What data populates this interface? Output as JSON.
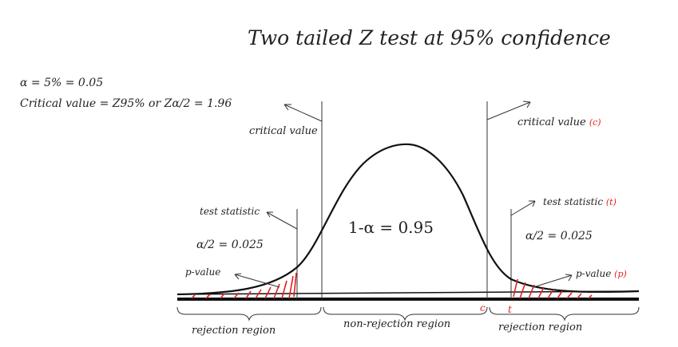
{
  "title": "Two tailed Z test at 95% confidence",
  "alpha_line": "α = 5% = 0.05",
  "critical_value_line": "Critical value = Z95% or Zα/2 = 1.96",
  "labels": {
    "critical_value_left": "critical value",
    "critical_value_right": "critical value",
    "critical_value_right_tag": "(c)",
    "test_statistic_left": "test statistic",
    "test_statistic_right": "test statistic",
    "test_statistic_right_tag": "(t)",
    "alpha_half_left": "α/2 = 0.025",
    "alpha_half_right": "α/2 = 0.025",
    "center_area": "1-α = 0.95",
    "p_value_left": "p-value",
    "p_value_right": "p-value",
    "p_value_right_tag": "(p)",
    "marker_c": "c",
    "marker_t": "t"
  },
  "regions": {
    "left": "rejection region",
    "middle": "non-rejection region",
    "right": "rejection region"
  },
  "colors": {
    "ink": "#111111",
    "accent": "#e02020"
  }
}
